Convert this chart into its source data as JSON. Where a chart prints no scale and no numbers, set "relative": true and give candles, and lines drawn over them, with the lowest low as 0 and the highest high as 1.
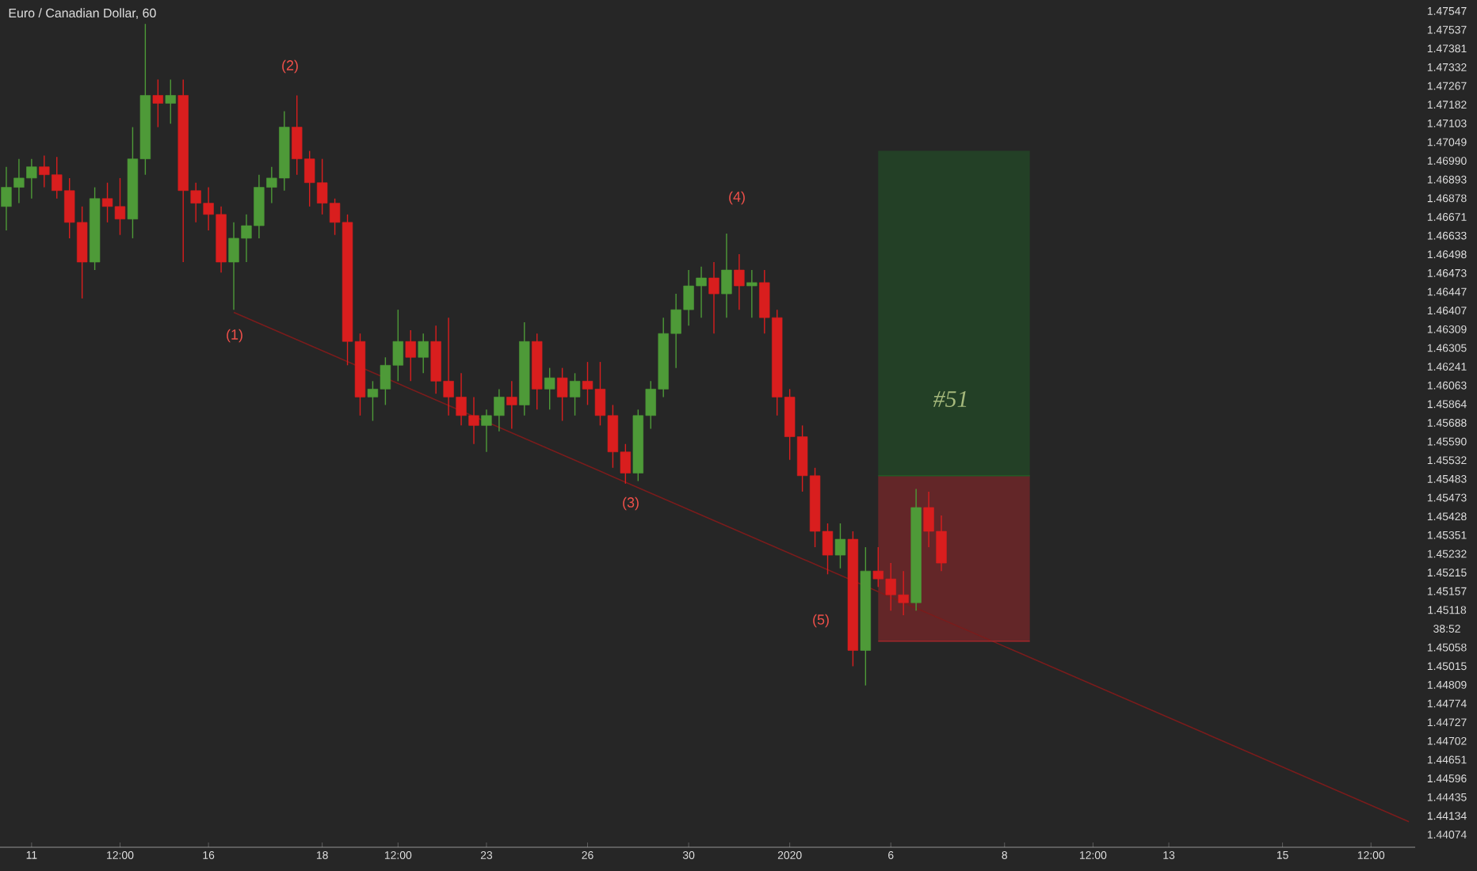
{
  "chart_data": {
    "type": "candlestick",
    "title": "Euro / Canadian Dollar, 60",
    "relative": true,
    "categories": [
      null,
      null,
      "11",
      null,
      null,
      null,
      null,
      null,
      null,
      "12:00",
      null,
      null,
      null,
      null,
      null,
      null,
      "16",
      null,
      null,
      null,
      null,
      null,
      null,
      null,
      null,
      "18",
      null,
      null,
      null,
      null,
      null,
      "12:00",
      null,
      null,
      null,
      null,
      null,
      null,
      "23",
      null,
      null,
      null,
      null,
      null,
      null,
      null,
      "26",
      null,
      null,
      null,
      null,
      null,
      null,
      null,
      "30",
      null,
      null,
      null,
      null,
      null,
      null,
      null,
      "2020",
      null,
      null,
      null,
      null,
      null,
      null,
      null,
      "6",
      null,
      null,
      null,
      null,
      null,
      null,
      null,
      null,
      "8",
      null,
      null,
      null,
      null,
      null,
      null,
      "12:00",
      null,
      null,
      null,
      null,
      null,
      "13",
      null,
      null,
      null,
      null,
      null,
      null,
      null,
      null,
      "15",
      null,
      null,
      null,
      null,
      null,
      null,
      "12:00",
      null,
      null,
      null
    ],
    "ohlc": [
      [
        0.724,
        0.784,
        0.688,
        0.753
      ],
      [
        0.753,
        0.796,
        0.729,
        0.767
      ],
      [
        0.767,
        0.796,
        0.736,
        0.784
      ],
      [
        0.784,
        0.801,
        0.753,
        0.772
      ],
      [
        0.772,
        0.799,
        0.736,
        0.748
      ],
      [
        0.748,
        0.767,
        0.676,
        0.7
      ],
      [
        0.7,
        0.724,
        0.585,
        0.64
      ],
      [
        0.64,
        0.753,
        0.628,
        0.736
      ],
      [
        0.736,
        0.76,
        0.7,
        0.724
      ],
      [
        0.724,
        0.767,
        0.681,
        0.705
      ],
      [
        0.705,
        0.844,
        0.676,
        0.796
      ],
      [
        0.796,
        1,
        0.772,
        0.892
      ],
      [
        0.892,
        0.916,
        0.844,
        0.88
      ],
      [
        0.88,
        0.916,
        0.849,
        0.892
      ],
      [
        0.892,
        0.916,
        0.64,
        0.748
      ],
      [
        0.748,
        0.76,
        0.7,
        0.729
      ],
      [
        0.729,
        0.753,
        0.688,
        0.712
      ],
      [
        0.712,
        0.724,
        0.624,
        0.64
      ],
      [
        0.64,
        0.7,
        0.568,
        0.676
      ],
      [
        0.676,
        0.712,
        0.64,
        0.695
      ],
      [
        0.695,
        0.772,
        0.676,
        0.753
      ],
      [
        0.753,
        0.784,
        0.729,
        0.767
      ],
      [
        0.767,
        0.868,
        0.748,
        0.844
      ],
      [
        0.844,
        0.892,
        0.772,
        0.796
      ],
      [
        0.796,
        0.808,
        0.724,
        0.76
      ],
      [
        0.76,
        0.796,
        0.712,
        0.729
      ],
      [
        0.729,
        0.736,
        0.681,
        0.7
      ],
      [
        0.7,
        0.712,
        0.484,
        0.52
      ],
      [
        0.52,
        0.532,
        0.408,
        0.436
      ],
      [
        0.436,
        0.46,
        0.4,
        0.448
      ],
      [
        0.448,
        0.496,
        0.424,
        0.484
      ],
      [
        0.484,
        0.568,
        0.46,
        0.52
      ],
      [
        0.52,
        0.537,
        0.46,
        0.496
      ],
      [
        0.496,
        0.532,
        0.472,
        0.52
      ],
      [
        0.52,
        0.544,
        0.441,
        0.46
      ],
      [
        0.46,
        0.556,
        0.408,
        0.436
      ],
      [
        0.436,
        0.472,
        0.393,
        0.408
      ],
      [
        0.408,
        0.436,
        0.365,
        0.393
      ],
      [
        0.393,
        0.417,
        0.353,
        0.408
      ],
      [
        0.408,
        0.448,
        0.384,
        0.436
      ],
      [
        0.436,
        0.46,
        0.388,
        0.424
      ],
      [
        0.424,
        0.549,
        0.408,
        0.52
      ],
      [
        0.52,
        0.532,
        0.417,
        0.448
      ],
      [
        0.448,
        0.48,
        0.417,
        0.465
      ],
      [
        0.465,
        0.48,
        0.4,
        0.436
      ],
      [
        0.436,
        0.472,
        0.408,
        0.46
      ],
      [
        0.46,
        0.489,
        0.424,
        0.448
      ],
      [
        0.448,
        0.489,
        0.393,
        0.408
      ],
      [
        0.408,
        0.424,
        0.329,
        0.353
      ],
      [
        0.353,
        0.365,
        0.305,
        0.321
      ],
      [
        0.321,
        0.417,
        0.309,
        0.408
      ],
      [
        0.408,
        0.46,
        0.388,
        0.448
      ],
      [
        0.448,
        0.556,
        0.436,
        0.532
      ],
      [
        0.532,
        0.592,
        0.48,
        0.568
      ],
      [
        0.568,
        0.628,
        0.544,
        0.604
      ],
      [
        0.604,
        0.633,
        0.556,
        0.616
      ],
      [
        0.616,
        0.64,
        0.532,
        0.592
      ],
      [
        0.592,
        0.683,
        0.556,
        0.628
      ],
      [
        0.628,
        0.652,
        0.568,
        0.604
      ],
      [
        0.604,
        0.628,
        0.556,
        0.609
      ],
      [
        0.609,
        0.628,
        0.532,
        0.556
      ],
      [
        0.556,
        0.568,
        0.408,
        0.436
      ],
      [
        0.436,
        0.448,
        0.341,
        0.376
      ],
      [
        0.376,
        0.393,
        0.293,
        0.317
      ],
      [
        0.317,
        0.329,
        0.209,
        0.233
      ],
      [
        0.233,
        0.245,
        0.168,
        0.197
      ],
      [
        0.197,
        0.245,
        0.177,
        0.221
      ],
      [
        0.221,
        0.233,
        0.029,
        0.053
      ],
      [
        0.053,
        0.209,
        0,
        0.173
      ],
      [
        0.173,
        0.209,
        0.149,
        0.161
      ],
      [
        0.161,
        0.185,
        0.113,
        0.137
      ],
      [
        0.137,
        0.173,
        0.106,
        0.125
      ],
      [
        0.125,
        0.297,
        0.113,
        0.269
      ],
      [
        0.269,
        0.293,
        0.209,
        0.233
      ],
      [
        0.233,
        0.257,
        0.173,
        0.185
      ],
      null,
      null,
      null,
      null,
      null,
      null,
      null,
      null,
      null,
      null,
      null,
      null,
      null,
      null,
      null,
      null,
      null,
      null,
      null,
      null,
      null,
      null,
      null,
      null,
      null,
      null,
      null,
      null,
      null,
      null,
      null,
      null,
      null,
      null,
      null,
      null,
      null
    ],
    "series": [
      {
        "type": "line",
        "color": "#7a1c1c",
        "values": [
          null,
          null,
          null,
          null,
          null,
          null,
          null,
          null,
          null,
          null,
          null,
          null,
          null,
          null,
          null,
          null,
          null,
          null,
          0.564,
          null,
          null,
          null,
          null,
          null,
          null,
          null,
          null,
          null,
          null,
          null,
          null,
          null,
          null,
          null,
          null,
          null,
          null,
          null,
          null,
          null,
          null,
          null,
          null,
          null,
          null,
          null,
          null,
          null,
          null,
          null,
          null,
          null,
          null,
          null,
          null,
          null,
          null,
          null,
          null,
          null,
          null,
          null,
          null,
          null,
          null,
          null,
          null,
          null,
          null,
          null,
          null,
          null,
          null,
          null,
          null,
          null,
          null,
          null,
          null,
          null,
          null,
          null,
          null,
          null,
          null,
          null,
          null,
          null,
          null,
          null,
          null,
          null,
          null,
          null,
          null,
          null,
          null,
          null,
          null,
          null,
          null,
          null,
          null,
          null,
          null,
          null,
          null,
          null,
          null,
          null,
          null,
          -0.206
        ]
      },
      {
        "type": "line",
        "color": "#1f5a25",
        "values": [
          null,
          null,
          null,
          null,
          null,
          null,
          null,
          null,
          null,
          null,
          null,
          null,
          null,
          null,
          null,
          null,
          null,
          null,
          null,
          null,
          null,
          null,
          null,
          null,
          null,
          null,
          null,
          null,
          null,
          null,
          null,
          null,
          null,
          null,
          null,
          null,
          null,
          null,
          null,
          null,
          null,
          null,
          null,
          null,
          null,
          null,
          null,
          null,
          null,
          null,
          null,
          null,
          null,
          null,
          null,
          null,
          null,
          null,
          null,
          null,
          null,
          null,
          null,
          null,
          null,
          null,
          null,
          null,
          null,
          0.317,
          0.317,
          0.317,
          0.317,
          0.317,
          0.317,
          0.317,
          0.317,
          0.317,
          0.317,
          0.317,
          0.317,
          0.317,
          null,
          null,
          null,
          null,
          null,
          null,
          null,
          null,
          null,
          null,
          null,
          null,
          null,
          null,
          null,
          null,
          null,
          null,
          null,
          null,
          null,
          null,
          null,
          null,
          null,
          null,
          null,
          null,
          null,
          null
        ],
        "lower": [
          null,
          null,
          null,
          null,
          null,
          null,
          null,
          null,
          null,
          null,
          null,
          null,
          null,
          null,
          null,
          null,
          null,
          null,
          null,
          null,
          null,
          null,
          null,
          null,
          null,
          null,
          null,
          null,
          null,
          null,
          null,
          null,
          null,
          null,
          null,
          null,
          null,
          null,
          null,
          null,
          null,
          null,
          null,
          null,
          null,
          null,
          null,
          null,
          null,
          null,
          null,
          null,
          null,
          null,
          null,
          null,
          null,
          null,
          null,
          null,
          null,
          null,
          null,
          null,
          null,
          null,
          null,
          null,
          null,
          0.317,
          0.317,
          0.317,
          0.317,
          0.317,
          0.317,
          0.317,
          0.317,
          0.317,
          0.317,
          0.317,
          0.317,
          0.317,
          null,
          null,
          null,
          null,
          null,
          null,
          null,
          null,
          null,
          null,
          null,
          null,
          null,
          null,
          null,
          null,
          null,
          null,
          null,
          null,
          null,
          null,
          null,
          null,
          null,
          null,
          null,
          null,
          null,
          null
        ],
        "upper": [
          null,
          null,
          null,
          null,
          null,
          null,
          null,
          null,
          null,
          null,
          null,
          null,
          null,
          null,
          null,
          null,
          null,
          null,
          null,
          null,
          null,
          null,
          null,
          null,
          null,
          null,
          null,
          null,
          null,
          null,
          null,
          null,
          null,
          null,
          null,
          null,
          null,
          null,
          null,
          null,
          null,
          null,
          null,
          null,
          null,
          null,
          null,
          null,
          null,
          null,
          null,
          null,
          null,
          null,
          null,
          null,
          null,
          null,
          null,
          null,
          null,
          null,
          null,
          null,
          null,
          null,
          null,
          null,
          null,
          0.808,
          0.808,
          0.808,
          0.808,
          0.808,
          0.808,
          0.808,
          0.808,
          0.808,
          0.808,
          0.808,
          0.808,
          0.808,
          null,
          null,
          null,
          null,
          null,
          null,
          null,
          null,
          null,
          null,
          null,
          null,
          null,
          null,
          null,
          null,
          null,
          null,
          null,
          null,
          null,
          null,
          null,
          null,
          null,
          null,
          null,
          null,
          null,
          null
        ]
      },
      {
        "type": "line",
        "color": "#a0262a",
        "values": [
          null,
          null,
          null,
          null,
          null,
          null,
          null,
          null,
          null,
          null,
          null,
          null,
          null,
          null,
          null,
          null,
          null,
          null,
          null,
          null,
          null,
          null,
          null,
          null,
          null,
          null,
          null,
          null,
          null,
          null,
          null,
          null,
          null,
          null,
          null,
          null,
          null,
          null,
          null,
          null,
          null,
          null,
          null,
          null,
          null,
          null,
          null,
          null,
          null,
          null,
          null,
          null,
          null,
          null,
          null,
          null,
          null,
          null,
          null,
          null,
          null,
          null,
          null,
          null,
          null,
          null,
          null,
          null,
          null,
          0.067,
          0.067,
          0.067,
          0.067,
          0.067,
          0.067,
          0.067,
          0.067,
          0.067,
          0.067,
          0.067,
          0.067,
          0.067,
          null,
          null,
          null,
          null,
          null,
          null,
          null,
          null,
          null,
          null,
          null,
          null,
          null,
          null,
          null,
          null,
          null,
          null,
          null,
          null,
          null,
          null,
          null,
          null,
          null,
          null,
          null,
          null,
          null,
          null
        ],
        "lower": [
          null,
          null,
          null,
          null,
          null,
          null,
          null,
          null,
          null,
          null,
          null,
          null,
          null,
          null,
          null,
          null,
          null,
          null,
          null,
          null,
          null,
          null,
          null,
          null,
          null,
          null,
          null,
          null,
          null,
          null,
          null,
          null,
          null,
          null,
          null,
          null,
          null,
          null,
          null,
          null,
          null,
          null,
          null,
          null,
          null,
          null,
          null,
          null,
          null,
          null,
          null,
          null,
          null,
          null,
          null,
          null,
          null,
          null,
          null,
          null,
          null,
          null,
          null,
          null,
          null,
          null,
          null,
          null,
          null,
          0.067,
          0.067,
          0.067,
          0.067,
          0.067,
          0.067,
          0.067,
          0.067,
          0.067,
          0.067,
          0.067,
          0.067,
          0.067,
          null,
          null,
          null,
          null,
          null,
          null,
          null,
          null,
          null,
          null,
          null,
          null,
          null,
          null,
          null,
          null,
          null,
          null,
          null,
          null,
          null,
          null,
          null,
          null,
          null,
          null,
          null,
          null,
          null,
          null
        ],
        "upper": [
          null,
          null,
          null,
          null,
          null,
          null,
          null,
          null,
          null,
          null,
          null,
          null,
          null,
          null,
          null,
          null,
          null,
          null,
          null,
          null,
          null,
          null,
          null,
          null,
          null,
          null,
          null,
          null,
          null,
          null,
          null,
          null,
          null,
          null,
          null,
          null,
          null,
          null,
          null,
          null,
          null,
          null,
          null,
          null,
          null,
          null,
          null,
          null,
          null,
          null,
          null,
          null,
          null,
          null,
          null,
          null,
          null,
          null,
          null,
          null,
          null,
          null,
          null,
          null,
          null,
          null,
          null,
          null,
          null,
          0.317,
          0.317,
          0.317,
          0.317,
          0.317,
          0.317,
          0.317,
          0.317,
          0.317,
          0.317,
          0.317,
          0.317,
          0.317,
          null,
          null,
          null,
          null,
          null,
          null,
          null,
          null,
          null,
          null,
          null,
          null,
          null,
          null,
          null,
          null,
          null,
          null,
          null,
          null,
          null,
          null,
          null,
          null,
          null,
          null,
          null,
          null,
          null,
          null
        ]
      }
    ],
    "annotations": [
      "(1)",
      "(2)",
      "(3)",
      "(4)",
      "(5)",
      "#51",
      "1.47547",
      "1.47537",
      "1.47381",
      "1.47332",
      "1.47267",
      "1.47182",
      "1.47103",
      "1.47049",
      "1.46990",
      "1.46893",
      "1.46878",
      "1.46671",
      "1.46633",
      "1.46498",
      "1.46473",
      "1.46447",
      "1.46407",
      "1.46309",
      "1.46305",
      "1.46241",
      "1.46063",
      "1.45864",
      "1.45688",
      "1.45590",
      "1.45532",
      "1.45483",
      "1.45473",
      "1.45428",
      "1.45351",
      "1.45232",
      "1.45215",
      "1.45157",
      "1.45118",
      "38:52",
      "1.45058",
      "1.45015",
      "1.44809",
      "1.44774",
      "1.44727",
      "1.44702",
      "1.44651",
      "1.44596",
      "1.44435",
      "1.44134",
      "1.44074"
    ]
  }
}
